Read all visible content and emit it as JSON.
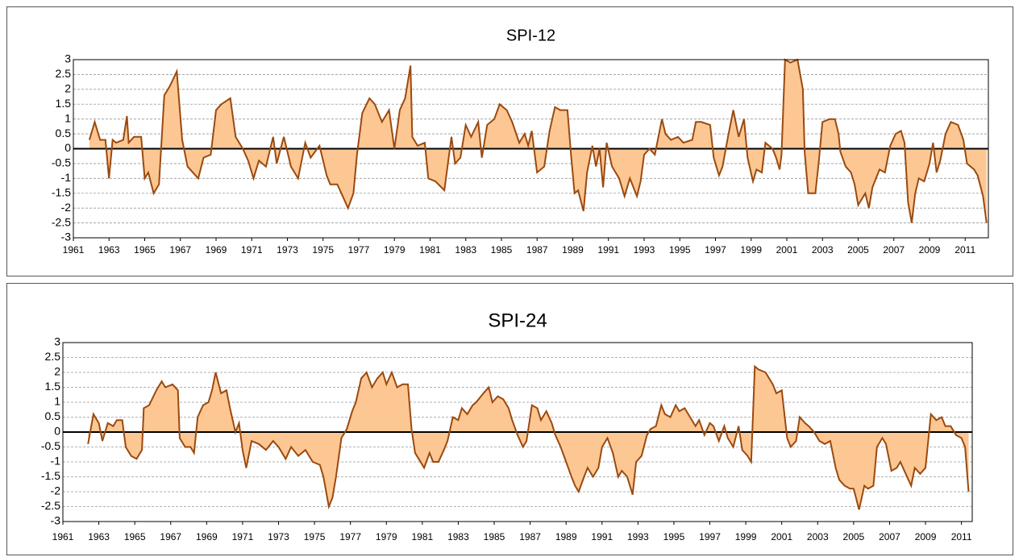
{
  "chart_data": [
    {
      "type": "area",
      "title": "SPI-12",
      "color": "#9a4a10",
      "fill": "#fdc793",
      "grid": true,
      "xlim": [
        1961,
        2012.3
      ],
      "ylim": [
        -3,
        3
      ],
      "xticks": [
        1961,
        1963,
        1965,
        1967,
        1969,
        1971,
        1973,
        1975,
        1977,
        1979,
        1981,
        1983,
        1985,
        1987,
        1989,
        1991,
        1993,
        1995,
        1997,
        1999,
        2001,
        2003,
        2005,
        2007,
        2009,
        2011
      ],
      "yticks": [
        -3,
        -2.5,
        -2,
        -1.5,
        -1,
        -0.5,
        0,
        0.5,
        1,
        1.5,
        2,
        2.5,
        3
      ],
      "x": [
        1961.9,
        1962.2,
        1962.5,
        1962.8,
        1963.0,
        1963.2,
        1963.4,
        1963.8,
        1964.0,
        1964.1,
        1964.4,
        1964.8,
        1965.0,
        1965.2,
        1965.5,
        1965.8,
        1966.1,
        1966.4,
        1966.8,
        1967.1,
        1967.4,
        1968.0,
        1968.3,
        1968.7,
        1969.0,
        1969.3,
        1969.8,
        1970.1,
        1970.5,
        1970.8,
        1971.1,
        1971.4,
        1971.8,
        1972.2,
        1972.4,
        1972.8,
        1973.2,
        1973.6,
        1974.0,
        1974.3,
        1974.8,
        1975.2,
        1975.4,
        1975.8,
        1976.1,
        1976.4,
        1976.7,
        1976.9,
        1977.2,
        1977.6,
        1977.9,
        1978.3,
        1978.7,
        1979.0,
        1979.3,
        1979.6,
        1979.9,
        1980.0,
        1980.3,
        1980.7,
        1980.9,
        1981.3,
        1981.8,
        1982.0,
        1982.2,
        1982.4,
        1982.7,
        1983.0,
        1983.3,
        1983.7,
        1983.9,
        1984.2,
        1984.6,
        1984.9,
        1985.3,
        1985.6,
        1986.0,
        1986.3,
        1986.5,
        1986.7,
        1987.0,
        1987.4,
        1987.7,
        1988.0,
        1988.3,
        1988.7,
        1988.9,
        1989.1,
        1989.3,
        1989.6,
        1989.8,
        1990.1,
        1990.3,
        1990.5,
        1990.7,
        1990.9,
        1991.2,
        1991.6,
        1991.9,
        1992.2,
        1992.6,
        1992.8,
        1993.0,
        1993.3,
        1993.6,
        1994.0,
        1994.2,
        1994.5,
        1994.9,
        1995.2,
        1995.7,
        1995.9,
        1996.2,
        1996.7,
        1996.9,
        1997.2,
        1997.4,
        1997.7,
        1998.0,
        1998.3,
        1998.6,
        1998.8,
        1999.1,
        1999.3,
        1999.6,
        1999.8,
        2000.2,
        2000.4,
        2000.6,
        2000.7,
        2000.9,
        2001.2,
        2001.6,
        2001.9,
        2002.0,
        2002.2,
        2002.6,
        2002.8,
        2003.0,
        2003.4,
        2003.7,
        2003.9,
        2004.0,
        2004.3,
        2004.6,
        2004.8,
        2005.0,
        2005.4,
        2005.6,
        2005.8,
        2006.2,
        2006.5,
        2006.8,
        2007.1,
        2007.4,
        2007.6,
        2007.8,
        2008.0,
        2008.2,
        2008.4,
        2008.7,
        2009.0,
        2009.2,
        2009.4,
        2009.6,
        2009.9,
        2010.2,
        2010.6,
        2010.9,
        2011.1,
        2011.5,
        2011.7,
        2012.0,
        2012.2
      ],
      "values": [
        0.3,
        0.9,
        0.3,
        0.3,
        -1.0,
        0.3,
        0.2,
        0.3,
        1.1,
        0.2,
        0.4,
        0.4,
        -1.0,
        -0.8,
        -1.5,
        -1.2,
        1.8,
        2.1,
        2.6,
        0.3,
        -0.6,
        -1.0,
        -0.3,
        -0.2,
        1.3,
        1.5,
        1.7,
        0.4,
        0.0,
        -0.4,
        -1.0,
        -0.4,
        -0.6,
        0.4,
        -0.5,
        0.4,
        -0.6,
        -1.0,
        0.2,
        -0.3,
        0.1,
        -0.9,
        -1.2,
        -1.2,
        -1.6,
        -2.0,
        -1.5,
        -0.2,
        1.2,
        1.7,
        1.5,
        0.9,
        1.3,
        0.0,
        1.3,
        1.7,
        2.8,
        0.4,
        0.1,
        0.2,
        -1.0,
        -1.1,
        -1.4,
        -0.5,
        0.4,
        -0.5,
        -0.3,
        0.8,
        0.4,
        0.9,
        -0.3,
        0.8,
        1.0,
        1.5,
        1.3,
        0.9,
        0.2,
        0.5,
        0.1,
        0.6,
        -0.8,
        -0.6,
        0.6,
        1.4,
        1.3,
        1.3,
        -0.2,
        -1.5,
        -1.4,
        -2.1,
        -0.8,
        0.1,
        -0.6,
        0.0,
        -1.3,
        0.2,
        -0.6,
        -1.0,
        -1.6,
        -1.0,
        -1.6,
        -1.1,
        -0.2,
        0.0,
        -0.2,
        1.0,
        0.5,
        0.3,
        0.4,
        0.2,
        0.3,
        0.9,
        0.9,
        0.8,
        -0.3,
        -0.9,
        -0.6,
        0.4,
        1.3,
        0.4,
        1.0,
        -0.3,
        -1.1,
        -0.7,
        -0.8,
        0.2,
        0.0,
        -0.3,
        -0.7,
        -0.2,
        3.0,
        2.9,
        3.0,
        2.0,
        -0.1,
        -1.5,
        -1.5,
        -0.4,
        0.9,
        1.0,
        1.0,
        0.5,
        -0.1,
        -0.6,
        -0.8,
        -1.2,
        -1.9,
        -1.5,
        -2.0,
        -1.3,
        -0.7,
        -0.8,
        0.1,
        0.5,
        0.6,
        0.2,
        -1.8,
        -2.5,
        -1.5,
        -1.0,
        -1.1,
        -0.5,
        0.2,
        -0.8,
        -0.4,
        0.5,
        0.9,
        0.8,
        0.3,
        -0.5,
        -0.7,
        -0.9,
        -1.6,
        -2.5
      ]
    },
    {
      "type": "area",
      "title": "SPI-24",
      "color": "#9a4a10",
      "fill": "#fdc793",
      "grid": true,
      "xlim": [
        1961,
        2011.6
      ],
      "ylim": [
        -3,
        3
      ],
      "xticks": [
        1961,
        1963,
        1965,
        1967,
        1969,
        1971,
        1973,
        1975,
        1977,
        1979,
        1981,
        1983,
        1985,
        1987,
        1989,
        1991,
        1993,
        1995,
        1997,
        1999,
        2001,
        2003,
        2005,
        2007,
        2009,
        2011
      ],
      "yticks": [
        -3,
        -2.5,
        -2,
        -1.5,
        -1,
        -0.5,
        0,
        0.5,
        1,
        1.5,
        2,
        2.5,
        3
      ],
      "x": [
        1962.4,
        1962.7,
        1963.0,
        1963.2,
        1963.5,
        1963.8,
        1964.0,
        1964.3,
        1964.5,
        1964.8,
        1965.1,
        1965.4,
        1965.5,
        1965.8,
        1966.2,
        1966.5,
        1966.7,
        1967.1,
        1967.4,
        1967.5,
        1967.8,
        1968.1,
        1968.3,
        1968.5,
        1968.8,
        1969.1,
        1969.3,
        1969.5,
        1969.8,
        1970.1,
        1970.3,
        1970.6,
        1970.8,
        1971.0,
        1971.2,
        1971.5,
        1971.9,
        1972.3,
        1972.7,
        1973.0,
        1973.4,
        1973.7,
        1974.1,
        1974.5,
        1974.9,
        1975.3,
        1975.5,
        1975.8,
        1976.0,
        1976.2,
        1976.5,
        1976.8,
        1977.1,
        1977.3,
        1977.6,
        1977.9,
        1978.2,
        1978.5,
        1978.8,
        1979.0,
        1979.3,
        1979.6,
        1979.9,
        1980.2,
        1980.4,
        1980.6,
        1980.8,
        1981.1,
        1981.4,
        1981.6,
        1981.9,
        1982.2,
        1982.4,
        1982.7,
        1983.0,
        1983.2,
        1983.5,
        1983.8,
        1984.0,
        1984.4,
        1984.7,
        1984.9,
        1985.2,
        1985.5,
        1985.8,
        1986.0,
        1986.3,
        1986.6,
        1986.8,
        1987.1,
        1987.4,
        1987.6,
        1987.9,
        1988.2,
        1988.4,
        1988.7,
        1989.0,
        1989.3,
        1989.5,
        1989.7,
        1990.0,
        1990.2,
        1990.5,
        1990.8,
        1991.0,
        1991.3,
        1991.6,
        1991.9,
        1992.1,
        1992.4,
        1992.7,
        1992.9,
        1993.2,
        1993.5,
        1993.7,
        1994.0,
        1994.3,
        1994.5,
        1994.8,
        1995.1,
        1995.3,
        1995.6,
        1995.9,
        1996.2,
        1996.4,
        1996.7,
        1997.0,
        1997.2,
        1997.5,
        1997.8,
        1998.0,
        1998.3,
        1998.6,
        1998.8,
        1999.1,
        1999.3,
        1999.5,
        1999.7,
        2000.1,
        2000.5,
        2000.7,
        2001.0,
        2001.3,
        2001.5,
        2001.8,
        2002.0,
        2002.3,
        2002.5,
        2002.8,
        2003.1,
        2003.4,
        2003.7,
        2004.0,
        2004.2,
        2004.5,
        2004.8,
        2005.0,
        2005.3,
        2005.6,
        2005.8,
        2006.1,
        2006.3,
        2006.6,
        2006.8,
        2007.1,
        2007.4,
        2007.6,
        2007.9,
        2008.2,
        2008.4,
        2008.7,
        2009.0,
        2009.2,
        2009.3,
        2009.6,
        2009.9,
        2010.1,
        2010.4,
        2010.7,
        2011.0,
        2011.2,
        2011.4
      ],
      "values": [
        -0.4,
        0.6,
        0.3,
        -0.3,
        0.3,
        0.2,
        0.4,
        0.4,
        -0.5,
        -0.8,
        -0.9,
        -0.6,
        0.8,
        0.9,
        1.4,
        1.7,
        1.5,
        1.6,
        1.4,
        -0.2,
        -0.5,
        -0.5,
        -0.7,
        0.5,
        0.9,
        1.0,
        1.4,
        2.0,
        1.3,
        1.4,
        0.8,
        0.0,
        0.3,
        -0.6,
        -1.2,
        -0.3,
        -0.4,
        -0.6,
        -0.3,
        -0.5,
        -0.9,
        -0.5,
        -0.8,
        -0.6,
        -1.0,
        -1.1,
        -1.5,
        -2.5,
        -2.2,
        -1.5,
        -0.2,
        0.1,
        0.7,
        1.0,
        1.8,
        2.0,
        1.5,
        1.8,
        2.0,
        1.6,
        2.0,
        1.5,
        1.6,
        1.6,
        0.1,
        -0.7,
        -0.9,
        -1.2,
        -0.7,
        -1.0,
        -1.0,
        -0.6,
        -0.3,
        0.5,
        0.4,
        0.8,
        0.6,
        0.9,
        1.0,
        1.3,
        1.5,
        1.0,
        1.2,
        1.1,
        0.8,
        0.4,
        -0.1,
        -0.5,
        -0.3,
        0.9,
        0.8,
        0.4,
        0.7,
        0.3,
        -0.1,
        -0.5,
        -1.0,
        -1.5,
        -1.8,
        -2.0,
        -1.5,
        -1.2,
        -1.5,
        -1.2,
        -0.5,
        -0.2,
        -0.7,
        -1.5,
        -1.3,
        -1.5,
        -2.1,
        -1.0,
        -0.8,
        -0.1,
        0.1,
        0.2,
        0.9,
        0.6,
        0.5,
        0.9,
        0.7,
        0.8,
        0.5,
        0.2,
        0.4,
        -0.1,
        0.3,
        0.2,
        -0.3,
        0.2,
        -0.2,
        -0.5,
        0.2,
        -0.6,
        -0.8,
        -1.0,
        2.2,
        2.1,
        2.0,
        1.6,
        1.3,
        1.4,
        -0.2,
        -0.5,
        -0.3,
        0.5,
        0.3,
        0.2,
        0.0,
        -0.3,
        -0.4,
        -0.3,
        -1.2,
        -1.6,
        -1.8,
        -1.9,
        -1.9,
        -2.6,
        -1.8,
        -1.9,
        -1.8,
        -0.5,
        -0.2,
        -0.4,
        -1.3,
        -1.2,
        -1.0,
        -1.4,
        -1.8,
        -1.2,
        -1.4,
        -1.2,
        0.0,
        0.6,
        0.4,
        0.5,
        0.2,
        0.2,
        -0.1,
        -0.2,
        -0.5,
        -2.0
      ]
    }
  ]
}
